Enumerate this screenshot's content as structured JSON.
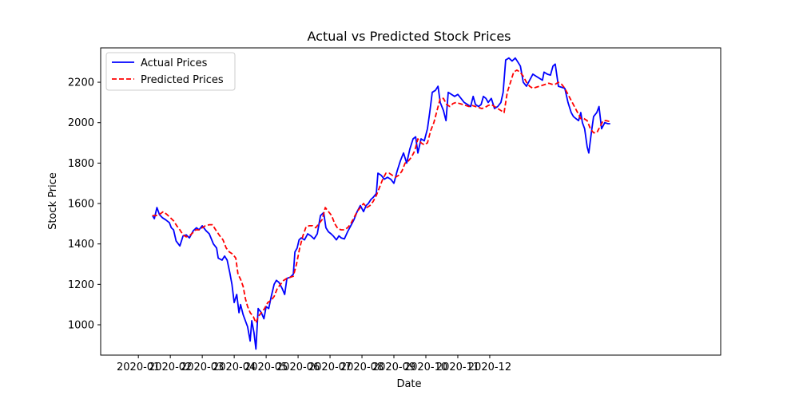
{
  "chart_data": {
    "type": "line",
    "title": "Actual vs Predicted Stock Prices",
    "xlabel": "Date",
    "ylabel": "Stock Price",
    "x_ticks": [
      "2020-01",
      "2020-02",
      "2020-03",
      "2020-04",
      "2020-05",
      "2020-06",
      "2020-07",
      "2020-08",
      "2020-09",
      "2020-10",
      "2020-11",
      "2020-12"
    ],
    "y_ticks": [
      1000,
      1200,
      1400,
      1600,
      1800,
      2000,
      2200
    ],
    "xlim": [
      -1.18,
      18.23
    ],
    "ylim": [
      850,
      2370
    ],
    "x_unit": "months since 2020-01-01",
    "legend": [
      "Actual Prices",
      "Predicted Prices"
    ],
    "legend_position": "top-left",
    "series": [
      {
        "name": "Actual Prices",
        "color": "#0000ff",
        "style": "solid",
        "points": [
          [
            0.44,
            1540
          ],
          [
            0.5,
            1525
          ],
          [
            0.58,
            1580
          ],
          [
            0.66,
            1545
          ],
          [
            0.75,
            1530
          ],
          [
            0.85,
            1520
          ],
          [
            0.97,
            1505
          ],
          [
            1.03,
            1480
          ],
          [
            1.1,
            1470
          ],
          [
            1.18,
            1415
          ],
          [
            1.3,
            1390
          ],
          [
            1.4,
            1440
          ],
          [
            1.5,
            1445
          ],
          [
            1.6,
            1430
          ],
          [
            1.72,
            1465
          ],
          [
            1.82,
            1480
          ],
          [
            1.9,
            1470
          ],
          [
            2.0,
            1490
          ],
          [
            2.12,
            1465
          ],
          [
            2.22,
            1450
          ],
          [
            2.35,
            1400
          ],
          [
            2.45,
            1380
          ],
          [
            2.5,
            1330
          ],
          [
            2.62,
            1320
          ],
          [
            2.7,
            1340
          ],
          [
            2.78,
            1320
          ],
          [
            2.86,
            1260
          ],
          [
            2.93,
            1200
          ],
          [
            3.0,
            1110
          ],
          [
            3.08,
            1150
          ],
          [
            3.15,
            1060
          ],
          [
            3.2,
            1100
          ],
          [
            3.28,
            1050
          ],
          [
            3.35,
            1020
          ],
          [
            3.42,
            990
          ],
          [
            3.5,
            920
          ],
          [
            3.55,
            1020
          ],
          [
            3.62,
            960
          ],
          [
            3.68,
            880
          ],
          [
            3.75,
            1080
          ],
          [
            3.85,
            1060
          ],
          [
            3.93,
            1030
          ],
          [
            4.0,
            1090
          ],
          [
            4.08,
            1080
          ],
          [
            4.16,
            1140
          ],
          [
            4.25,
            1200
          ],
          [
            4.32,
            1220
          ],
          [
            4.4,
            1210
          ],
          [
            4.5,
            1180
          ],
          [
            4.58,
            1150
          ],
          [
            4.65,
            1230
          ],
          [
            4.75,
            1235
          ],
          [
            4.85,
            1250
          ],
          [
            4.9,
            1360
          ],
          [
            4.97,
            1380
          ],
          [
            5.03,
            1420
          ],
          [
            5.1,
            1430
          ],
          [
            5.2,
            1420
          ],
          [
            5.3,
            1450
          ],
          [
            5.4,
            1440
          ],
          [
            5.5,
            1425
          ],
          [
            5.6,
            1450
          ],
          [
            5.7,
            1540
          ],
          [
            5.8,
            1555
          ],
          [
            5.87,
            1480
          ],
          [
            5.95,
            1460
          ],
          [
            6.03,
            1450
          ],
          [
            6.1,
            1440
          ],
          [
            6.2,
            1420
          ],
          [
            6.28,
            1440
          ],
          [
            6.35,
            1430
          ],
          [
            6.45,
            1425
          ],
          [
            6.55,
            1460
          ],
          [
            6.65,
            1490
          ],
          [
            6.75,
            1520
          ],
          [
            6.85,
            1560
          ],
          [
            6.95,
            1590
          ],
          [
            7.05,
            1560
          ],
          [
            7.13,
            1590
          ],
          [
            7.2,
            1600
          ],
          [
            7.28,
            1620
          ],
          [
            7.35,
            1630
          ],
          [
            7.45,
            1650
          ],
          [
            7.5,
            1750
          ],
          [
            7.6,
            1740
          ],
          [
            7.7,
            1720
          ],
          [
            7.8,
            1730
          ],
          [
            7.9,
            1720
          ],
          [
            8.0,
            1700
          ],
          [
            8.1,
            1760
          ],
          [
            8.2,
            1810
          ],
          [
            8.3,
            1850
          ],
          [
            8.4,
            1800
          ],
          [
            8.5,
            1870
          ],
          [
            8.6,
            1920
          ],
          [
            8.68,
            1930
          ],
          [
            8.75,
            1850
          ],
          [
            8.85,
            1920
          ],
          [
            8.95,
            1910
          ],
          [
            9.05,
            1970
          ],
          [
            9.12,
            2050
          ],
          [
            9.2,
            2150
          ],
          [
            9.3,
            2160
          ],
          [
            9.38,
            2180
          ],
          [
            9.45,
            2100
          ],
          [
            9.55,
            2060
          ],
          [
            9.63,
            2010
          ],
          [
            9.7,
            2150
          ],
          [
            9.8,
            2140
          ],
          [
            9.9,
            2130
          ],
          [
            10.0,
            2140
          ],
          [
            10.1,
            2120
          ],
          [
            10.2,
            2100
          ],
          [
            10.3,
            2090
          ],
          [
            10.4,
            2080
          ],
          [
            10.48,
            2130
          ],
          [
            10.55,
            2090
          ],
          [
            10.65,
            2080
          ],
          [
            10.73,
            2090
          ],
          [
            10.8,
            2130
          ],
          [
            10.88,
            2120
          ],
          [
            10.95,
            2100
          ],
          [
            11.05,
            2120
          ],
          [
            11.15,
            2070
          ],
          [
            11.25,
            2080
          ],
          [
            11.35,
            2100
          ],
          [
            11.42,
            2150
          ],
          [
            11.5,
            2310
          ],
          [
            11.6,
            2320
          ],
          [
            11.7,
            2305
          ],
          [
            11.8,
            2320
          ],
          [
            11.88,
            2300
          ],
          [
            11.96,
            2280
          ],
          [
            12.05,
            2200
          ],
          [
            12.15,
            2180
          ],
          [
            12.25,
            2210
          ],
          [
            12.35,
            2240
          ],
          [
            12.45,
            2230
          ],
          [
            12.55,
            2220
          ],
          [
            12.65,
            2210
          ],
          [
            12.7,
            2250
          ],
          [
            12.8,
            2240
          ],
          [
            12.9,
            2235
          ],
          [
            12.98,
            2280
          ],
          [
            13.05,
            2290
          ],
          [
            13.15,
            2180
          ],
          [
            13.25,
            2175
          ],
          [
            13.35,
            2170
          ],
          [
            13.45,
            2100
          ],
          [
            13.55,
            2050
          ],
          [
            13.62,
            2030
          ],
          [
            13.7,
            2020
          ],
          [
            13.78,
            2010
          ],
          [
            13.85,
            2050
          ],
          [
            13.9,
            2000
          ],
          [
            13.97,
            1970
          ],
          [
            14.05,
            1880
          ],
          [
            14.1,
            1850
          ],
          [
            14.18,
            1950
          ],
          [
            14.25,
            2030
          ],
          [
            14.35,
            2050
          ],
          [
            14.42,
            2080
          ],
          [
            14.5,
            1970
          ],
          [
            14.6,
            2000
          ],
          [
            14.7,
            1995
          ],
          [
            14.77,
            1995
          ]
        ]
      },
      {
        "name": "Predicted Prices",
        "color": "#ff0000",
        "style": "dashed",
        "points": [
          [
            0.44,
            1540
          ],
          [
            0.55,
            1540
          ],
          [
            0.65,
            1545
          ],
          [
            0.78,
            1560
          ],
          [
            0.9,
            1545
          ],
          [
            1.0,
            1530
          ],
          [
            1.1,
            1515
          ],
          [
            1.2,
            1490
          ],
          [
            1.3,
            1470
          ],
          [
            1.4,
            1445
          ],
          [
            1.5,
            1435
          ],
          [
            1.6,
            1440
          ],
          [
            1.7,
            1455
          ],
          [
            1.8,
            1470
          ],
          [
            1.9,
            1470
          ],
          [
            2.0,
            1480
          ],
          [
            2.1,
            1490
          ],
          [
            2.22,
            1495
          ],
          [
            2.32,
            1495
          ],
          [
            2.42,
            1470
          ],
          [
            2.55,
            1440
          ],
          [
            2.65,
            1420
          ],
          [
            2.75,
            1380
          ],
          [
            2.85,
            1360
          ],
          [
            2.95,
            1350
          ],
          [
            3.05,
            1330
          ],
          [
            3.12,
            1250
          ],
          [
            3.2,
            1225
          ],
          [
            3.28,
            1190
          ],
          [
            3.35,
            1130
          ],
          [
            3.42,
            1090
          ],
          [
            3.5,
            1060
          ],
          [
            3.6,
            1040
          ],
          [
            3.68,
            1010
          ],
          [
            3.75,
            1040
          ],
          [
            3.85,
            1060
          ],
          [
            3.95,
            1080
          ],
          [
            4.05,
            1110
          ],
          [
            4.15,
            1120
          ],
          [
            4.25,
            1140
          ],
          [
            4.35,
            1180
          ],
          [
            4.45,
            1200
          ],
          [
            4.55,
            1220
          ],
          [
            4.65,
            1230
          ],
          [
            4.75,
            1235
          ],
          [
            4.85,
            1240
          ],
          [
            4.95,
            1300
          ],
          [
            5.05,
            1380
          ],
          [
            5.15,
            1440
          ],
          [
            5.25,
            1485
          ],
          [
            5.35,
            1490
          ],
          [
            5.45,
            1490
          ],
          [
            5.55,
            1480
          ],
          [
            5.65,
            1500
          ],
          [
            5.75,
            1520
          ],
          [
            5.85,
            1580
          ],
          [
            5.95,
            1560
          ],
          [
            6.05,
            1540
          ],
          [
            6.15,
            1500
          ],
          [
            6.25,
            1475
          ],
          [
            6.35,
            1470
          ],
          [
            6.45,
            1470
          ],
          [
            6.55,
            1480
          ],
          [
            6.65,
            1500
          ],
          [
            6.75,
            1530
          ],
          [
            6.85,
            1560
          ],
          [
            6.95,
            1580
          ],
          [
            7.05,
            1600
          ],
          [
            7.15,
            1580
          ],
          [
            7.25,
            1590
          ],
          [
            7.35,
            1610
          ],
          [
            7.45,
            1640
          ],
          [
            7.55,
            1680
          ],
          [
            7.65,
            1720
          ],
          [
            7.75,
            1750
          ],
          [
            7.85,
            1750
          ],
          [
            7.95,
            1740
          ],
          [
            8.05,
            1730
          ],
          [
            8.15,
            1740
          ],
          [
            8.25,
            1760
          ],
          [
            8.35,
            1800
          ],
          [
            8.45,
            1810
          ],
          [
            8.55,
            1830
          ],
          [
            8.65,
            1860
          ],
          [
            8.75,
            1920
          ],
          [
            8.85,
            1900
          ],
          [
            8.95,
            1890
          ],
          [
            9.05,
            1900
          ],
          [
            9.15,
            1960
          ],
          [
            9.25,
            2000
          ],
          [
            9.35,
            2060
          ],
          [
            9.45,
            2120
          ],
          [
            9.55,
            2120
          ],
          [
            9.65,
            2090
          ],
          [
            9.75,
            2080
          ],
          [
            9.85,
            2095
          ],
          [
            9.95,
            2100
          ],
          [
            10.05,
            2095
          ],
          [
            10.15,
            2090
          ],
          [
            10.25,
            2085
          ],
          [
            10.35,
            2080
          ],
          [
            10.45,
            2085
          ],
          [
            10.55,
            2080
          ],
          [
            10.65,
            2075
          ],
          [
            10.75,
            2070
          ],
          [
            10.85,
            2075
          ],
          [
            10.95,
            2085
          ],
          [
            11.05,
            2090
          ],
          [
            11.15,
            2080
          ],
          [
            11.25,
            2070
          ],
          [
            11.35,
            2060
          ],
          [
            11.45,
            2050
          ],
          [
            11.55,
            2150
          ],
          [
            11.65,
            2200
          ],
          [
            11.75,
            2250
          ],
          [
            11.85,
            2260
          ],
          [
            11.95,
            2250
          ],
          [
            12.05,
            2230
          ],
          [
            12.15,
            2200
          ],
          [
            12.25,
            2180
          ],
          [
            12.35,
            2170
          ],
          [
            12.45,
            2175
          ],
          [
            12.55,
            2180
          ],
          [
            12.65,
            2185
          ],
          [
            12.75,
            2190
          ],
          [
            12.85,
            2195
          ],
          [
            12.95,
            2190
          ],
          [
            13.05,
            2190
          ],
          [
            13.15,
            2200
          ],
          [
            13.25,
            2190
          ],
          [
            13.35,
            2170
          ],
          [
            13.45,
            2140
          ],
          [
            13.55,
            2110
          ],
          [
            13.65,
            2080
          ],
          [
            13.75,
            2050
          ],
          [
            13.85,
            2020
          ],
          [
            13.95,
            2020
          ],
          [
            14.05,
            2010
          ],
          [
            14.15,
            1970
          ],
          [
            14.25,
            1950
          ],
          [
            14.35,
            1950
          ],
          [
            14.45,
            1980
          ],
          [
            14.55,
            2010
          ],
          [
            14.65,
            2010
          ],
          [
            14.77,
            2005
          ]
        ]
      }
    ]
  }
}
